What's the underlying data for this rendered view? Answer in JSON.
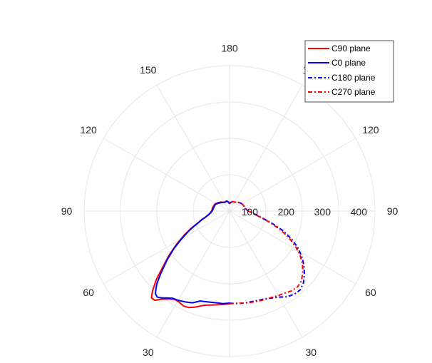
{
  "chart_data": {
    "type": "polar_line",
    "title": "",
    "angle_unit": "degrees",
    "angle_zero": "bottom",
    "angle_direction": "clockwise",
    "angle_ticks": [
      {
        "angle": 180,
        "label": "180"
      },
      {
        "angle": 150,
        "label": "150"
      },
      {
        "angle": 120,
        "label": "120"
      },
      {
        "angle": 90,
        "label": "90"
      },
      {
        "angle": 60,
        "label": "60"
      },
      {
        "angle": 30,
        "label": "30"
      },
      {
        "angle": 0,
        "label": ""
      },
      {
        "angle": -30,
        "label": "30"
      },
      {
        "angle": -60,
        "label": "60"
      },
      {
        "angle": -90,
        "label": "90"
      },
      {
        "angle": -120,
        "label": "120"
      },
      {
        "angle": -150,
        "label": "150"
      }
    ],
    "radial_ticks": [
      100,
      200,
      300,
      400
    ],
    "rlim": [
      0,
      400
    ],
    "grid": true,
    "legend_position": "top-right",
    "series": [
      {
        "name": "C90 plane",
        "color": "#ff0000",
        "dash": "solid",
        "points": [
          [
            0,
            255
          ],
          [
            5,
            258
          ],
          [
            10,
            262
          ],
          [
            15,
            268
          ],
          [
            20,
            281
          ],
          [
            23,
            288
          ],
          [
            26,
            290
          ],
          [
            29,
            286
          ],
          [
            32,
            286
          ],
          [
            35,
            295
          ],
          [
            38,
            308
          ],
          [
            40,
            320
          ],
          [
            42,
            321
          ],
          [
            44,
            305
          ],
          [
            47,
            275
          ],
          [
            50,
            240
          ],
          [
            54,
            205
          ],
          [
            58,
            172
          ],
          [
            62,
            142
          ],
          [
            66,
            115
          ],
          [
            68,
            102
          ],
          [
            70,
            90
          ],
          [
            73,
            80
          ],
          [
            76,
            68
          ],
          [
            80,
            60
          ],
          [
            85,
            53
          ],
          [
            90,
            50
          ],
          [
            95,
            48
          ],
          [
            100,
            48
          ],
          [
            108,
            46
          ],
          [
            115,
            45
          ],
          [
            125,
            40
          ],
          [
            135,
            35
          ],
          [
            145,
            30
          ],
          [
            152,
            28
          ],
          [
            158,
            29
          ],
          [
            165,
            29
          ],
          [
            175,
            25
          ],
          [
            180,
            20
          ]
        ]
      },
      {
        "name": "C0 plane",
        "color": "#0000ff",
        "dash": "solid",
        "points": [
          [
            0,
            253
          ],
          [
            4,
            255
          ],
          [
            9,
            255
          ],
          [
            14,
            257
          ],
          [
            18,
            260
          ],
          [
            22,
            272
          ],
          [
            26,
            278
          ],
          [
            30,
            283
          ],
          [
            33,
            286
          ],
          [
            36,
            295
          ],
          [
            38,
            303
          ],
          [
            40,
            309
          ],
          [
            42,
            305
          ],
          [
            45,
            283
          ],
          [
            48,
            253
          ],
          [
            52,
            218
          ],
          [
            56,
            185
          ],
          [
            60,
            152
          ],
          [
            64,
            125
          ],
          [
            67,
            105
          ],
          [
            70,
            90
          ],
          [
            73,
            79
          ],
          [
            76,
            68
          ],
          [
            80,
            59
          ],
          [
            85,
            52
          ],
          [
            90,
            48
          ],
          [
            95,
            46
          ],
          [
            100,
            45
          ],
          [
            108,
            44
          ],
          [
            115,
            43
          ],
          [
            125,
            38
          ],
          [
            135,
            33
          ],
          [
            145,
            29
          ],
          [
            152,
            27
          ],
          [
            158,
            28
          ],
          [
            165,
            28
          ],
          [
            175,
            24
          ],
          [
            180,
            20
          ]
        ]
      },
      {
        "name": "C180 plane",
        "color": "#0000ff",
        "dash": "dashdot",
        "points": [
          [
            0,
            253
          ],
          [
            -4,
            255
          ],
          [
            -9,
            256
          ],
          [
            -14,
            256
          ],
          [
            -18,
            258
          ],
          [
            -22,
            260
          ],
          [
            -26,
            266
          ],
          [
            -30,
            273
          ],
          [
            -34,
            284
          ],
          [
            -38,
            290
          ],
          [
            -42,
            291
          ],
          [
            -46,
            283
          ],
          [
            -50,
            269
          ],
          [
            -54,
            253
          ],
          [
            -58,
            234
          ],
          [
            -62,
            212
          ],
          [
            -66,
            186
          ],
          [
            -70,
            155
          ],
          [
            -74,
            122
          ],
          [
            -78,
            93
          ],
          [
            -82,
            74
          ],
          [
            -86,
            62
          ],
          [
            -90,
            53
          ],
          [
            -95,
            47
          ],
          [
            -100,
            44
          ],
          [
            -108,
            42
          ],
          [
            -115,
            41
          ],
          [
            -125,
            38
          ],
          [
            -135,
            34
          ],
          [
            -145,
            30
          ],
          [
            -152,
            28
          ],
          [
            -158,
            28
          ],
          [
            -165,
            27
          ],
          [
            -175,
            23
          ],
          [
            -180,
            20
          ]
        ]
      },
      {
        "name": "C270 plane",
        "color": "#ff0000",
        "dash": "dashdot",
        "points": [
          [
            0,
            255
          ],
          [
            -4,
            254
          ],
          [
            -9,
            256
          ],
          [
            -14,
            258
          ],
          [
            -18,
            260
          ],
          [
            -22,
            262
          ],
          [
            -26,
            264
          ],
          [
            -30,
            268
          ],
          [
            -34,
            272
          ],
          [
            -38,
            278
          ],
          [
            -42,
            280
          ],
          [
            -46,
            275
          ],
          [
            -50,
            263
          ],
          [
            -54,
            248
          ],
          [
            -58,
            229
          ],
          [
            -62,
            205
          ],
          [
            -66,
            178
          ],
          [
            -70,
            148
          ],
          [
            -74,
            117
          ],
          [
            -78,
            90
          ],
          [
            -82,
            72
          ],
          [
            -86,
            61
          ],
          [
            -90,
            52
          ],
          [
            -95,
            47
          ],
          [
            -100,
            44
          ],
          [
            -108,
            42
          ],
          [
            -115,
            41
          ],
          [
            -125,
            38
          ],
          [
            -135,
            34
          ],
          [
            -145,
            30
          ],
          [
            -152,
            28
          ],
          [
            -158,
            28
          ],
          [
            -165,
            27
          ],
          [
            -175,
            23
          ],
          [
            -180,
            20
          ]
        ]
      }
    ]
  }
}
